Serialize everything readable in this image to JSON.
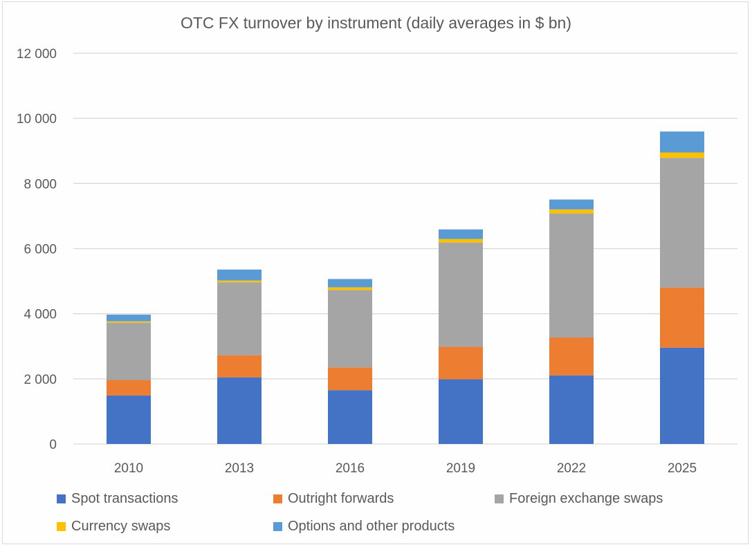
{
  "chart_data": {
    "type": "bar",
    "stacked": true,
    "title": "OTC FX turnover by instrument (daily averages in $ bn)",
    "xlabel": "",
    "ylabel": "",
    "categories": [
      "2010",
      "2013",
      "2016",
      "2019",
      "2022",
      "2025"
    ],
    "ylim": [
      0,
      12000
    ],
    "yticks": [
      0,
      2000,
      4000,
      6000,
      8000,
      10000,
      12000
    ],
    "ytick_labels": [
      "0",
      "2 000",
      "4 000",
      "6 000",
      "8 000",
      "10 000",
      "12 000"
    ],
    "grid": true,
    "legend_position": "bottom",
    "series": [
      {
        "name": "Spot transactions",
        "color": "#4472c4",
        "values": [
          1489,
          2047,
          1652,
          1987,
          2107,
          2958
        ]
      },
      {
        "name": "Outright forwards",
        "color": "#ed7d31",
        "values": [
          475,
          679,
          700,
          999,
          1163,
          1848
        ]
      },
      {
        "name": "Foreign exchange swaps",
        "color": "#a5a5a5",
        "values": [
          1759,
          2240,
          2378,
          3202,
          3810,
          3981
        ]
      },
      {
        "name": "Currency swaps",
        "color": "#ffc000",
        "values": [
          43,
          54,
          82,
          108,
          124,
          165
        ]
      },
      {
        "name": "Options and other products",
        "color": "#5b9bd5",
        "values": [
          207,
          337,
          254,
          294,
          304,
          644
        ]
      }
    ]
  }
}
